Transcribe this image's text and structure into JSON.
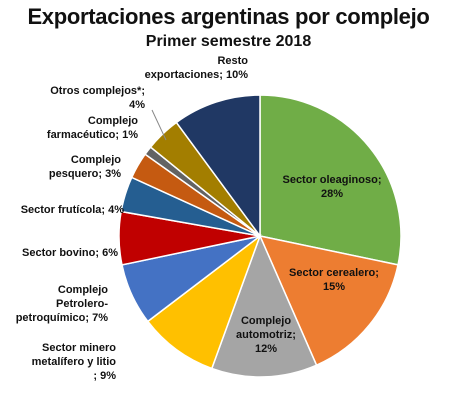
{
  "chart_data": {
    "type": "pie",
    "title": "Exportaciones argentinas por complejo",
    "subtitle": "Primer semestre 2018",
    "slices": [
      {
        "label": "Sector oleaginoso",
        "value": 28,
        "display": [
          "Sector oleaginoso;",
          "28%"
        ],
        "color": "#70AD47"
      },
      {
        "label": "Sector cerealero",
        "value": 15,
        "display": [
          "Sector cerealero;",
          "15%"
        ],
        "color": "#ED7D31"
      },
      {
        "label": "Complejo automotriz",
        "value": 12,
        "display": [
          "Complejo",
          "automotriz;",
          "12%"
        ],
        "color": "#A5A5A5"
      },
      {
        "label": "Sector minero metalífero y litio",
        "value": 9,
        "display": [
          "Sector minero",
          "metalífero y litio",
          "; 9%"
        ],
        "color": "#FFC000"
      },
      {
        "label": "Complejo Petrolero-petroquímico",
        "value": 7,
        "display": [
          "Complejo",
          "Petrolero-",
          "petroquímico; 7%"
        ],
        "color": "#4472C4"
      },
      {
        "label": "Sector bovino",
        "value": 6,
        "display": [
          "Sector bovino; 6%"
        ],
        "color": "#C00000"
      },
      {
        "label": "Sector frutícola",
        "value": 4,
        "display": [
          "Sector frutícola; 4%"
        ],
        "color": "#255E91"
      },
      {
        "label": "Complejo pesquero",
        "value": 3,
        "display": [
          "Complejo",
          "pesquero; 3%"
        ],
        "color": "#C55A11"
      },
      {
        "label": "Complejo farmacéutico",
        "value": 1,
        "display": [
          "Complejo",
          "farmacéutico; 1%"
        ],
        "color": "#636363"
      },
      {
        "label": "Otros complejos*",
        "value": 4,
        "display": [
          "Otros complejos*;",
          "4%"
        ],
        "color": "#A37E00"
      },
      {
        "label": "Resto exportaciones",
        "value": 10,
        "display": [
          "Resto",
          "exportaciones; 10%"
        ],
        "color": "#203864"
      }
    ]
  }
}
